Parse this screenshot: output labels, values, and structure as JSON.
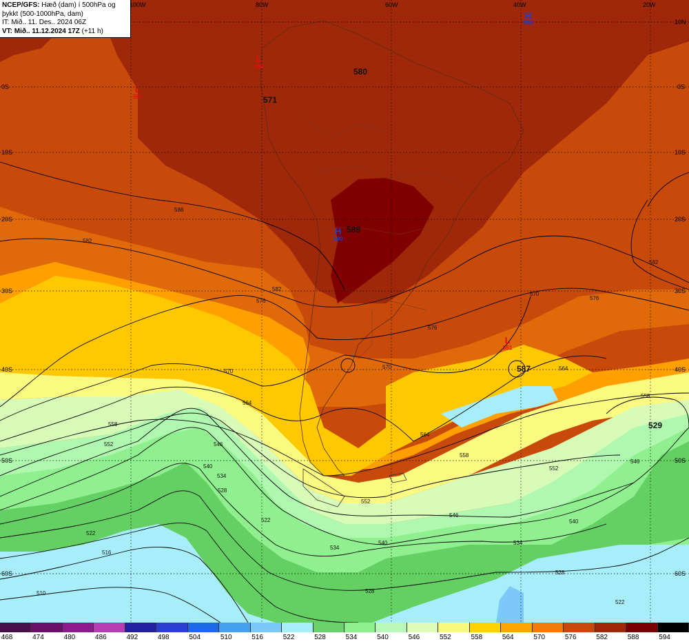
{
  "header": {
    "line1_bold": "NCEP/GFS:",
    "line1": " Hæð (dam) í 500hPa og",
    "line2": "þykkt (500-1000hPa, dam)",
    "line3": "IT: Mið.. 11. Des.. 2024 06Z",
    "line4_bold": "VT: Mið.. 11.12.2024 17Z",
    "line4": " (+11 h)"
  },
  "lon_labels": [
    "100W",
    "80W",
    "60W",
    "40W",
    "20W"
  ],
  "lat_labels_left": [
    "0S",
    "10S",
    "20S",
    "30S",
    "40S",
    "50S",
    "60S"
  ],
  "lat_labels_right": [
    "10N",
    "0S",
    "10S",
    "20S",
    "30S",
    "40S",
    "50S",
    "60S"
  ],
  "pressure_centers": [
    {
      "type": "H",
      "value": "585",
      "color": "#1a3fd6"
    },
    {
      "type": "L",
      "value": "587",
      "color": "#e01010"
    },
    {
      "type": "L",
      "value": "588",
      "color": "#e01010"
    },
    {
      "type": "H",
      "value": "590",
      "color": "#1a3fd6"
    },
    {
      "type": "L",
      "value": "551",
      "color": "#e01010"
    }
  ],
  "big_labels": [
    "580",
    "571",
    "588",
    "587",
    "529"
  ],
  "contour_labels": [
    "588",
    "582",
    "576",
    "570",
    "564",
    "558",
    "552",
    "546",
    "540",
    "534",
    "528",
    "522",
    "516",
    "510",
    "582",
    "576",
    "570",
    "564",
    "558",
    "552",
    "546",
    "540",
    "534",
    "528",
    "522",
    "582",
    "576",
    "570",
    "564",
    "558",
    "552",
    "546",
    "540",
    "534",
    "528",
    "522"
  ],
  "colorbar": {
    "levels": [
      "468",
      "474",
      "480",
      "486",
      "492",
      "498",
      "504",
      "510",
      "516",
      "522",
      "528",
      "534",
      "540",
      "546",
      "552",
      "558",
      "564",
      "570",
      "576",
      "582",
      "588",
      "594"
    ],
    "colors": [
      "#4a0f4a",
      "#6a0f6a",
      "#8c1a8c",
      "#b43cb4",
      "#2020a0",
      "#2a3fd0",
      "#1e6ae6",
      "#46a0f0",
      "#78c8f8",
      "#a8eefa",
      "#6ad26a",
      "#8ef08e",
      "#b8f8b8",
      "#dcfcb8",
      "#f8f87e",
      "#ffd200",
      "#ffa500",
      "#f07a0a",
      "#c84a0a",
      "#a0280a",
      "#7a0000",
      "#000000"
    ]
  },
  "colors": {
    "c582": "#a0280a",
    "c576": "#c84a0a",
    "c570": "#e06a0a",
    "c564": "#ffa000",
    "c558": "#ffc800",
    "c552": "#fafa80",
    "c546": "#d8fcb8",
    "c540": "#b0f8b0",
    "c534": "#90f090",
    "c528": "#64d064",
    "c522": "#a8eefa",
    "c516": "#7cc8f8",
    "c588": "#800000"
  }
}
